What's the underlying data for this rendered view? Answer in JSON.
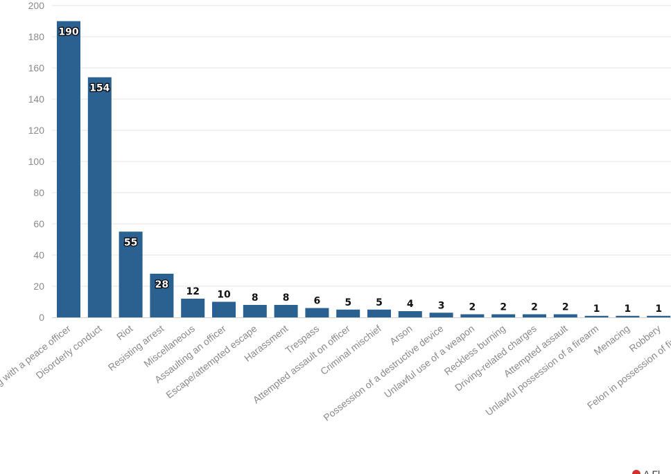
{
  "chart_data": {
    "type": "bar",
    "title": "",
    "xlabel": "",
    "ylabel": "",
    "ylim": [
      0,
      200
    ],
    "yticks": [
      0,
      20,
      40,
      60,
      80,
      100,
      120,
      140,
      160,
      180,
      200
    ],
    "grid": true,
    "categories": [
      "Interfering with a peace officer",
      "Disorderly conduct",
      "Riot",
      "Resisting arrest",
      "Miscellaneous",
      "Assaulting an officer",
      "Escape/attempted escape",
      "Harassment",
      "Trespass",
      "Attempted assault on officer",
      "Criminal mischief",
      "Arson",
      "Possession of a destructive device",
      "Unlawful use of a weapon",
      "Reckless burning",
      "Driving-related charges",
      "Attempted assault",
      "Unlawful possession of a firearm",
      "Menacing",
      "Robbery",
      "Felon in possession of firearm"
    ],
    "values": [
      190,
      154,
      55,
      28,
      12,
      10,
      8,
      8,
      6,
      5,
      5,
      4,
      3,
      2,
      2,
      2,
      2,
      1,
      1,
      1,
      1
    ],
    "bar_color": "#2b6190"
  },
  "footer": {
    "credit_text": "A Fl"
  }
}
